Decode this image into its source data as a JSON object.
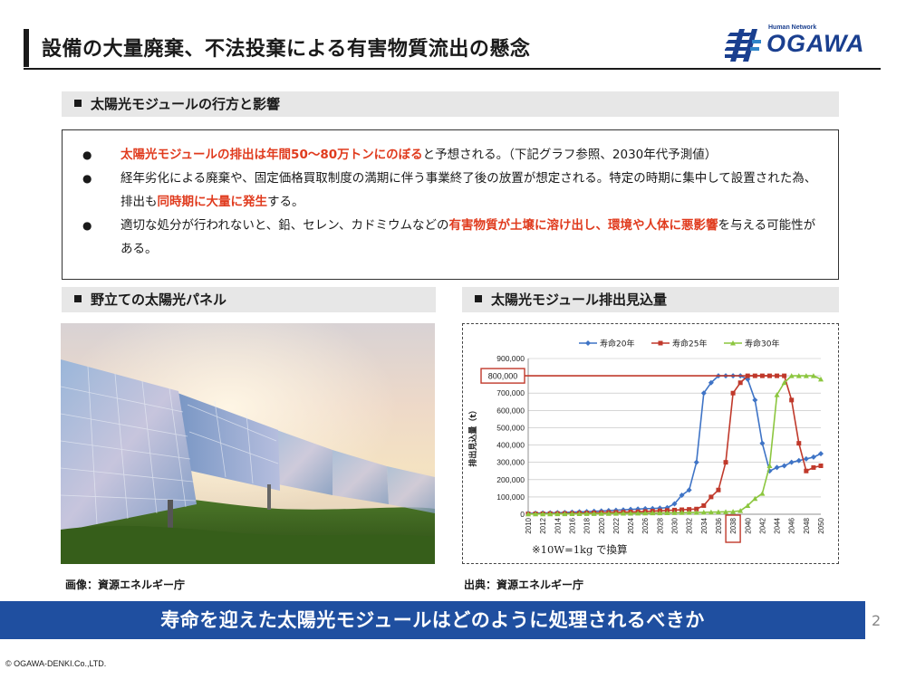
{
  "title": "設備の大量廃棄、不法投棄による有害物質流出の懸念",
  "logo": {
    "tagline": "Human Network",
    "word": "OGAWA"
  },
  "section1": {
    "heading": "太陽光モジュールの行方と影響",
    "bullets": [
      {
        "red": "太陽光モジュールの排出は年間50～80万トンにのぼる",
        "rest": "と予想される。（下記グラフ参照、2030年代予測値）"
      },
      {
        "pre": "経年劣化による廃棄や、固定価格買取制度の満期に伴う事業終了後の放置が想定される。特定の時期に集中して設置された為、排出も",
        "red": "同時期に大量に発生",
        "post": "する。"
      },
      {
        "pre": "適切な処分が行われないと、鉛、セレン、カドミウムなどの",
        "red": "有害物質が土壌に溶け出し、環境や人体に悪影響",
        "post": "を与える可能性がある。"
      }
    ]
  },
  "section2": {
    "heading": "野立ての太陽光パネル",
    "caption": "画像：資源エネルギー庁"
  },
  "section3": {
    "heading": "太陽光モジュール排出見込量",
    "caption": "出典：資源エネルギー庁"
  },
  "chart_data": {
    "type": "line",
    "ylabel": "排出見込量（t）",
    "ylim": [
      0,
      900000
    ],
    "yticks": [
      "0",
      "100,000",
      "200,000",
      "300,000",
      "400,000",
      "500,000",
      "600,000",
      "700,000",
      "800,000",
      "900,000"
    ],
    "x": [
      2010,
      2011,
      2012,
      2013,
      2014,
      2015,
      2016,
      2017,
      2018,
      2019,
      2020,
      2021,
      2022,
      2023,
      2024,
      2025,
      2026,
      2027,
      2028,
      2029,
      2030,
      2031,
      2032,
      2033,
      2034,
      2035,
      2036,
      2037,
      2038,
      2039,
      2040,
      2041,
      2042,
      2043,
      2044,
      2045,
      2046,
      2047,
      2048,
      2049,
      2050
    ],
    "xticks": [
      "2010",
      "2012",
      "2014",
      "2016",
      "2018",
      "2020",
      "2022",
      "2024",
      "2026",
      "2028",
      "2030",
      "2032",
      "2034",
      "2036",
      "2038",
      "2040",
      "2042",
      "2044",
      "2046",
      "2048",
      "2050"
    ],
    "highlight_value": "800,000",
    "highlight_year": "2038",
    "note": "※10W=1kg で換算",
    "legend_position": "top",
    "series": [
      {
        "name": "寿命20年",
        "color": "#3f74c6",
        "marker": "diamond",
        "values": [
          5000,
          6000,
          7000,
          8000,
          9000,
          10000,
          12000,
          14000,
          15000,
          17000,
          19000,
          21000,
          23000,
          25000,
          28000,
          30000,
          32000,
          33000,
          35000,
          38000,
          60000,
          110000,
          140000,
          300000,
          700000,
          760000,
          800000,
          800000,
          800000,
          800000,
          780000,
          660000,
          410000,
          250000,
          270000,
          280000,
          300000,
          310000,
          320000,
          330000,
          350000
        ]
      },
      {
        "name": "寿命25年",
        "color": "#c0392b",
        "marker": "square",
        "values": [
          2000,
          2500,
          3000,
          3500,
          4000,
          4500,
          5000,
          6000,
          7000,
          8000,
          9000,
          10000,
          11000,
          12000,
          13000,
          14000,
          16000,
          18000,
          20000,
          22000,
          24000,
          26000,
          28000,
          30000,
          50000,
          100000,
          140000,
          300000,
          700000,
          760000,
          800000,
          800000,
          800000,
          800000,
          800000,
          800000,
          660000,
          410000,
          250000,
          270000,
          280000
        ]
      },
      {
        "name": "寿命30年",
        "color": "#8cc63f",
        "marker": "triangle",
        "values": [
          1000,
          1200,
          1400,
          1600,
          1800,
          2000,
          2300,
          2600,
          3000,
          3300,
          3600,
          4000,
          4500,
          5000,
          5500,
          6000,
          6500,
          7000,
          7500,
          8000,
          8500,
          9000,
          9500,
          10000,
          11000,
          12000,
          13000,
          14000,
          15000,
          20000,
          50000,
          90000,
          120000,
          280000,
          690000,
          760000,
          800000,
          800000,
          800000,
          800000,
          780000
        ]
      }
    ]
  },
  "banner": "寿命を迎えた太陽光モジュールはどのように処理されるべきか",
  "page_number": "2",
  "copyright": "© OGAWA-DENKI.Co.,LTD."
}
